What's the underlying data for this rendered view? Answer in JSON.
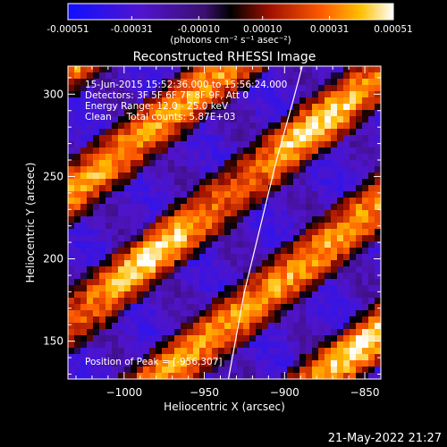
{
  "colorbar": {
    "tick_labels": [
      "-0.00051",
      "-0.00031",
      "-0.00010",
      "0.00010",
      "0.00031",
      "0.00051"
    ],
    "tick_values": [
      -0.00051,
      -0.00031,
      -0.0001,
      0.0001,
      0.00031,
      0.00051
    ],
    "range": [
      -0.00051,
      0.00051
    ],
    "unit_label": "(photons cm⁻² s⁻¹ asec⁻²)",
    "colors": [
      "#1010ff",
      "#5a14c8",
      "#000000",
      "#a81000",
      "#ff5a00",
      "#ffc000",
      "#ffffff"
    ]
  },
  "chart_data": {
    "type": "heatmap",
    "title": "Reconstructed RHESSI Image",
    "xlabel": "Heliocentric X (arcsec)",
    "ylabel": "Heliocentric Y (arcsec)",
    "xlim": [
      -1035,
      -840
    ],
    "ylim": [
      127,
      317
    ],
    "x_ticks": [
      -1000,
      -950,
      -900,
      -850
    ],
    "x_tick_labels": [
      "−1000",
      "−950",
      "−900",
      "−850"
    ],
    "y_ticks": [
      150,
      200,
      250,
      300
    ],
    "y_tick_labels": [
      "150",
      "200",
      "250",
      "300"
    ],
    "annotations": [
      "15-Jun-2015 15:52:36.000 to 15:56:24.000",
      "Detectors: 3F 5F 6F 7F 8F 9F, Att 0",
      "Energy Range: 12.0 - 25.0 keV",
      "Clean     Total counts: 5.87E+03"
    ],
    "peak_label": "Position of Peak = [-956,307]",
    "peak_position": [
      -956,
      307
    ],
    "limb_curve": [
      [
        -935,
        127
      ],
      [
        -925,
        180
      ],
      [
        -915,
        220
      ],
      [
        -905,
        260
      ],
      [
        -895,
        295
      ],
      [
        -889,
        317
      ]
    ],
    "bright_ridges": [
      {
        "peak_value": 0.00051,
        "center": [
          -920,
          240
        ]
      },
      {
        "peak_value": 0.00045,
        "center": [
          -980,
          210
        ]
      },
      {
        "peak_value": 0.0004,
        "center": [
          -880,
          170
        ]
      },
      {
        "peak_value": 0.00038,
        "center": [
          -860,
          290
        ]
      }
    ]
  },
  "timestamp": "21-May-2022 21:27"
}
